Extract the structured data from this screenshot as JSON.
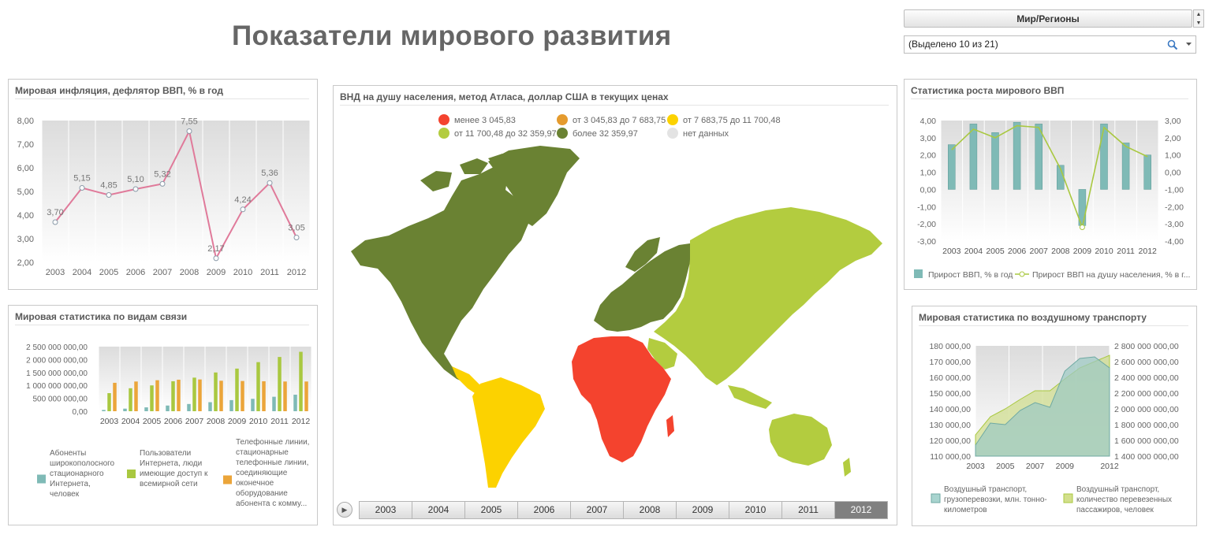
{
  "page_title": "Показатели мирового развития",
  "slicer": {
    "header": "Мир/Регионы",
    "selection": "(Выделено 10 из 21)"
  },
  "colors": {
    "pink_line": "#e07a9a",
    "teal": "#7fbab6",
    "lime": "#a9c840",
    "orange": "#eba53a",
    "map_red": "#f4432e",
    "map_orange": "#e59b2e",
    "map_yellow": "#fcd200",
    "map_lightgreen": "#b3cc3f",
    "map_darkgreen": "#6a8233",
    "map_nodata": "#e3e3e3"
  },
  "inflation": {
    "title": "Мировая инфляция, дефлятор ВВП, % в год",
    "chart_data": {
      "type": "line",
      "title": "Мировая инфляция, дефлятор ВВП, % в год",
      "x": [
        "2003",
        "2004",
        "2005",
        "2006",
        "2007",
        "2008",
        "2009",
        "2010",
        "2011",
        "2012"
      ],
      "y_ticks": [
        "8,00",
        "7,00",
        "6,00",
        "5,00",
        "4,00",
        "3,00",
        "2,00"
      ],
      "ylim": [
        2,
        8
      ],
      "series": [
        {
          "values": [
            3.7,
            5.15,
            4.85,
            5.1,
            5.32,
            7.55,
            2.17,
            4.24,
            5.36,
            3.05
          ],
          "labels": [
            "3,70",
            "5,15",
            "4,85",
            "5,10",
            "5,32",
            "7,55",
            "2,17",
            "4,24",
            "5,36",
            "3,05"
          ]
        }
      ]
    }
  },
  "communications": {
    "title": "Мировая статистика по видам связи",
    "chart_data": {
      "type": "bar",
      "title": "Мировая статистика по видам связи",
      "categories": [
        "2003",
        "2004",
        "2005",
        "2006",
        "2007",
        "2008",
        "2009",
        "2010",
        "2011",
        "2012"
      ],
      "y_ticks": [
        "2 500 000 000,00",
        "2 000 000 000,00",
        "1 500 000 000,00",
        "1 000 000 000,00",
        "500 000 000,00",
        "0,00"
      ],
      "ylim": [
        0,
        2500000000
      ],
      "series": [
        {
          "name": "Абоненты широкополосного стационарного Интернета, человек",
          "color_key": "teal",
          "values": [
            50000000,
            100000000,
            150000000,
            220000000,
            280000000,
            350000000,
            430000000,
            480000000,
            560000000,
            640000000
          ]
        },
        {
          "name": "Пользователи Интернета, люди имеющие доступ к всемирной сети",
          "color_key": "lime",
          "values": [
            700000000,
            890000000,
            1000000000,
            1160000000,
            1300000000,
            1500000000,
            1650000000,
            1900000000,
            2100000000,
            2300000000
          ]
        },
        {
          "name": "Телефонные линии, стационарные телефонные линии, соединяющие оконечное оборудование абонента с комму...",
          "color_key": "orange",
          "values": [
            1100000000,
            1150000000,
            1200000000,
            1220000000,
            1230000000,
            1180000000,
            1170000000,
            1160000000,
            1150000000,
            1150000000
          ]
        }
      ]
    },
    "legend": [
      {
        "text": "Абоненты широкополосного стационарного Интернета, человек",
        "color_key": "teal"
      },
      {
        "text": "Пользователи Интернета, люди имеющие доступ к всемирной сети",
        "color_key": "lime"
      },
      {
        "text": "Телефонные линии, стационарные телефонные линии, соединяющие оконечное оборудование абонента с комму...",
        "color_key": "orange"
      }
    ]
  },
  "map": {
    "title": "ВНД на душу населения, метод Атласа, доллар США в текущих ценах",
    "legend": [
      {
        "label": "менее 3 045,83",
        "color_key": "map_red"
      },
      {
        "label": "от 3 045,83 до 7 683,75",
        "color_key": "map_orange"
      },
      {
        "label": "от 7 683,75 до 11 700,48",
        "color_key": "map_yellow"
      },
      {
        "label": "от 11 700,48 до 32 359,97",
        "color_key": "map_lightgreen"
      },
      {
        "label": "более 32 359,97",
        "color_key": "map_darkgreen"
      },
      {
        "label": "нет данных",
        "color_key": "map_nodata"
      }
    ],
    "timeline": [
      "2003",
      "2004",
      "2005",
      "2006",
      "2007",
      "2008",
      "2009",
      "2010",
      "2011",
      "2012"
    ],
    "timeline_selected": "2012"
  },
  "gdp": {
    "title": "Статистика роста мирового ВВП",
    "chart_data": {
      "type": "bar",
      "title": "Статистика роста мирового ВВП",
      "categories": [
        "2003",
        "2004",
        "2005",
        "2006",
        "2007",
        "2008",
        "2009",
        "2010",
        "2011",
        "2012"
      ],
      "y_ticks": [
        "4,00",
        "3,00",
        "2,00",
        "1,00",
        "0,00",
        "-1,00",
        "-2,00",
        "-3,00"
      ],
      "y2_ticks": [
        "3,00",
        "2,00",
        "1,00",
        "0,00",
        "-1,00",
        "-2,00",
        "-3,00",
        "-4,00"
      ],
      "ylim": [
        -3,
        4
      ],
      "y2lim": [
        -4,
        3
      ],
      "series": [
        {
          "name": "Прирост ВВП, % в год",
          "type": "bar",
          "color_key": "teal",
          "values": [
            2.6,
            3.8,
            3.3,
            3.9,
            3.8,
            1.4,
            -2.1,
            3.8,
            2.7,
            2.0
          ]
        },
        {
          "name": "Прирост ВВП на душу населения, % в г...",
          "type": "line",
          "axis": "secondary",
          "color_key": "lime",
          "values": [
            1.3,
            2.5,
            2.0,
            2.7,
            2.6,
            0.2,
            -3.2,
            2.6,
            1.5,
            0.9
          ]
        }
      ]
    },
    "legend": [
      {
        "text": "Прирост ВВП, % в год",
        "color_key": "teal"
      },
      {
        "text": "Прирост ВВП на душу населения, % в г...",
        "color_key": "lime"
      }
    ]
  },
  "air": {
    "title": "Мировая статистика по воздушному транспорту",
    "chart_data": {
      "type": "area",
      "title": "Мировая статистика по воздушному транспорту",
      "x": [
        "2003",
        "2004",
        "2005",
        "2006",
        "2007",
        "2008",
        "2009",
        "2010",
        "2011",
        "2012"
      ],
      "x_tick_labels": [
        "2003",
        "2005",
        "2007",
        "2009",
        "2012"
      ],
      "y_ticks": [
        "180 000,00",
        "170 000,00",
        "160 000,00",
        "150 000,00",
        "140 000,00",
        "130 000,00",
        "120 000,00",
        "110 000,00"
      ],
      "y2_ticks": [
        "2 800 000 000,00",
        "2 600 000 000,00",
        "2 400 000 000,00",
        "2 200 000 000,00",
        "2 000 000 000,00",
        "1 800 000 000,00",
        "1 600 000 000,00",
        "1 400 000 000,00"
      ],
      "ylim": [
        110000,
        180000
      ],
      "y2lim": [
        1400000000,
        2800000000
      ],
      "series": [
        {
          "name": "Воздушный транспорт, грузоперевозки, млн. тонно-километров",
          "color_key": "teal",
          "axis": "primary",
          "values": [
            117000,
            131000,
            130000,
            139000,
            144000,
            141000,
            164000,
            172000,
            173000,
            166000
          ]
        },
        {
          "name": "Воздушный транспорт, количество перевезенных пассажиров, человек",
          "color_key": "lime",
          "axis": "secondary",
          "values": [
            1670000000,
            1900000000,
            2000000000,
            2120000000,
            2230000000,
            2230000000,
            2380000000,
            2520000000,
            2600000000,
            2680000000
          ]
        }
      ]
    },
    "legend": [
      {
        "text": "Воздушный транспорт, грузоперевозки, млн. тонно-километров",
        "color_key": "teal"
      },
      {
        "text": "Воздушный транспорт, количество перевезенных пассажиров, человек",
        "color_key": "lime"
      }
    ]
  }
}
